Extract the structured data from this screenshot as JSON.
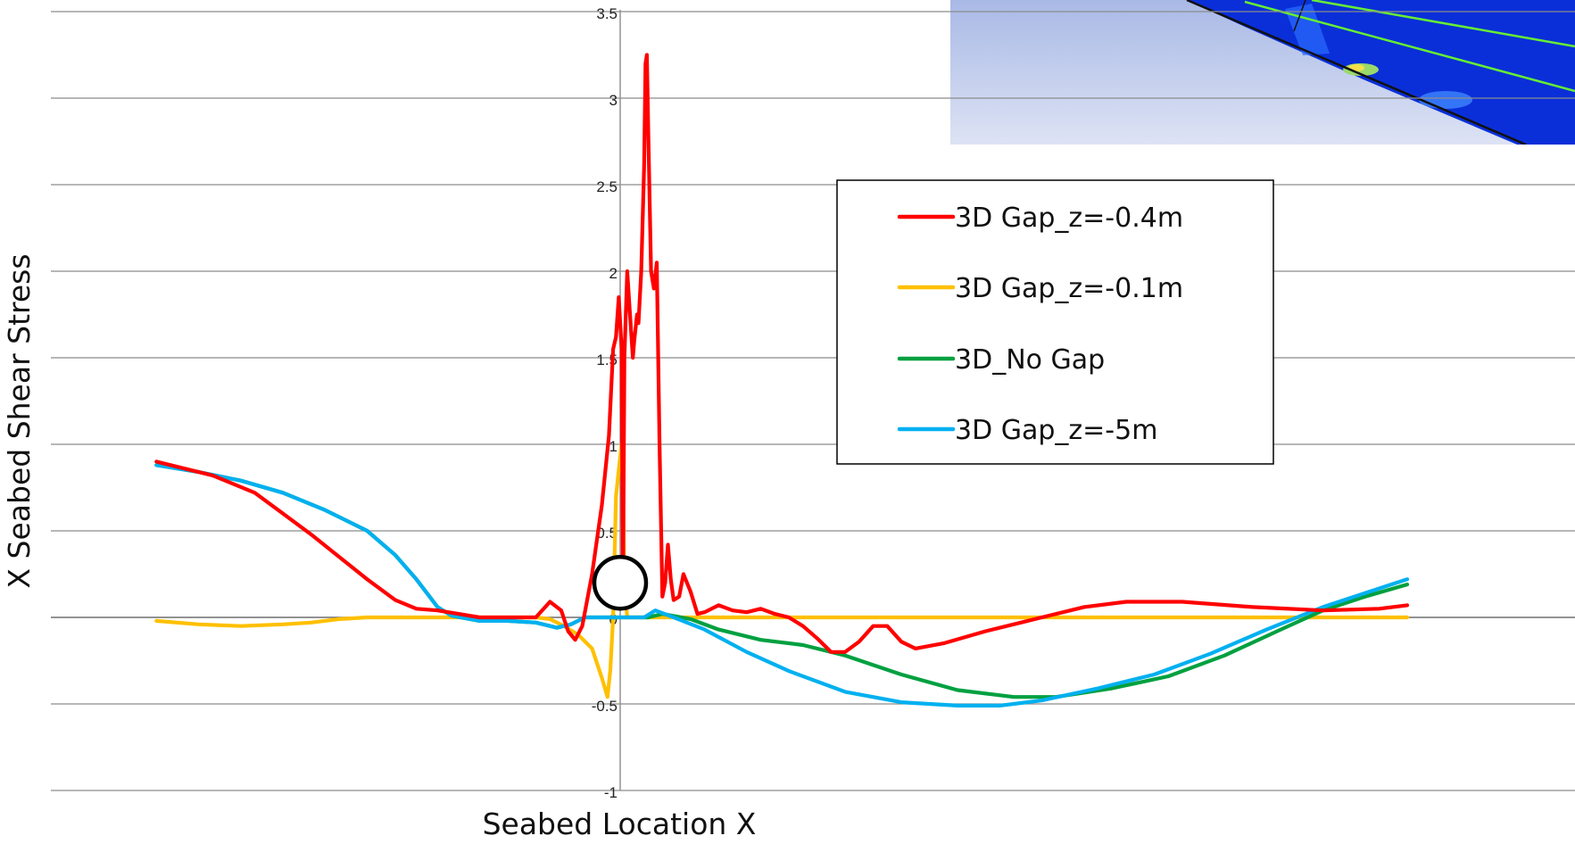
{
  "chart_data": {
    "type": "line",
    "title": "",
    "xlabel": "Seabed Location X",
    "ylabel": "X Seabed Shear Stress",
    "xlim": [
      -3.3,
      5.6
    ],
    "ylim": [
      -1,
      3.5
    ],
    "x_axis_crosses_at_y": 0,
    "y_axis_at_x": 0,
    "yticks": [
      -1,
      -0.5,
      0,
      0.5,
      1,
      1.5,
      2,
      2.5,
      3,
      3.5
    ],
    "ytick_labels": [
      "-1",
      "-0.5",
      "0",
      "0.5",
      "1",
      "1.5",
      "2",
      "2.5",
      "3",
      "3.5"
    ],
    "grid": "horizontal",
    "legend_position": "upper-right",
    "cylinder_marker": {
      "x": 0,
      "y": 0.2
    },
    "inset": "CFD seabed shear stress contour image (top-right)",
    "series": [
      {
        "name": "3D Gap_z=-0.4m",
        "color": "#ff0000",
        "points": [
          [
            -3.3,
            0.9
          ],
          [
            -2.9,
            0.82
          ],
          [
            -2.6,
            0.72
          ],
          [
            -2.4,
            0.6
          ],
          [
            -2.2,
            0.48
          ],
          [
            -2.0,
            0.35
          ],
          [
            -1.8,
            0.22
          ],
          [
            -1.6,
            0.1
          ],
          [
            -1.45,
            0.05
          ],
          [
            -1.3,
            0.04
          ],
          [
            -1.15,
            0.02
          ],
          [
            -1.0,
            0.0
          ],
          [
            -0.85,
            0.0
          ],
          [
            -0.6,
            0.0
          ],
          [
            -0.5,
            0.09
          ],
          [
            -0.42,
            0.04
          ],
          [
            -0.37,
            -0.08
          ],
          [
            -0.32,
            -0.13
          ],
          [
            -0.27,
            -0.05
          ],
          [
            -0.2,
            0.25
          ],
          [
            -0.13,
            0.65
          ],
          [
            -0.08,
            1.05
          ],
          [
            -0.05,
            1.55
          ],
          [
            -0.03,
            1.62
          ],
          [
            -0.01,
            1.85
          ],
          [
            0.01,
            1.55
          ],
          [
            0.02,
            0.1
          ],
          [
            0.03,
            1.5
          ],
          [
            0.05,
            2.0
          ],
          [
            0.07,
            1.75
          ],
          [
            0.09,
            1.5
          ],
          [
            0.1,
            1.6
          ],
          [
            0.12,
            1.75
          ],
          [
            0.13,
            1.7
          ],
          [
            0.15,
            2.0
          ],
          [
            0.17,
            2.6
          ],
          [
            0.18,
            3.2
          ],
          [
            0.19,
            3.25
          ],
          [
            0.2,
            2.8
          ],
          [
            0.22,
            2.0
          ],
          [
            0.24,
            1.9
          ],
          [
            0.26,
            2.05
          ],
          [
            0.28,
            1.0
          ],
          [
            0.3,
            0.12
          ],
          [
            0.32,
            0.2
          ],
          [
            0.34,
            0.42
          ],
          [
            0.36,
            0.22
          ],
          [
            0.38,
            0.1
          ],
          [
            0.42,
            0.12
          ],
          [
            0.45,
            0.25
          ],
          [
            0.5,
            0.15
          ],
          [
            0.55,
            0.02
          ],
          [
            0.6,
            0.03
          ],
          [
            0.7,
            0.07
          ],
          [
            0.8,
            0.04
          ],
          [
            0.9,
            0.03
          ],
          [
            1.0,
            0.05
          ],
          [
            1.1,
            0.02
          ],
          [
            1.2,
            0.0
          ],
          [
            1.3,
            -0.05
          ],
          [
            1.4,
            -0.12
          ],
          [
            1.5,
            -0.2
          ],
          [
            1.6,
            -0.2
          ],
          [
            1.7,
            -0.14
          ],
          [
            1.8,
            -0.05
          ],
          [
            1.9,
            -0.05
          ],
          [
            2.0,
            -0.14
          ],
          [
            2.1,
            -0.18
          ],
          [
            2.3,
            -0.15
          ],
          [
            2.6,
            -0.08
          ],
          [
            3.0,
            0.0
          ],
          [
            3.3,
            0.06
          ],
          [
            3.6,
            0.09
          ],
          [
            4.0,
            0.09
          ],
          [
            4.5,
            0.06
          ],
          [
            5.0,
            0.04
          ],
          [
            5.4,
            0.05
          ],
          [
            5.6,
            0.07
          ]
        ]
      },
      {
        "name": "3D Gap_z=-0.1m",
        "color": "#ffc000",
        "points": [
          [
            -3.3,
            -0.02
          ],
          [
            -3.0,
            -0.04
          ],
          [
            -2.7,
            -0.05
          ],
          [
            -2.4,
            -0.04
          ],
          [
            -2.2,
            -0.03
          ],
          [
            -2.0,
            -0.01
          ],
          [
            -1.8,
            0.0
          ],
          [
            -1.0,
            0.0
          ],
          [
            -0.6,
            0.0
          ],
          [
            -0.5,
            -0.01
          ],
          [
            -0.4,
            -0.05
          ],
          [
            -0.3,
            -0.1
          ],
          [
            -0.2,
            -0.18
          ],
          [
            -0.13,
            -0.35
          ],
          [
            -0.09,
            -0.46
          ],
          [
            -0.07,
            -0.3
          ],
          [
            -0.05,
            0.0
          ],
          [
            -0.04,
            0.35
          ],
          [
            -0.03,
            0.7
          ],
          [
            -0.01,
            0.85
          ],
          [
            0.01,
            1.0
          ],
          [
            0.02,
            0.8
          ],
          [
            0.03,
            0.2
          ],
          [
            0.05,
            0.0
          ],
          [
            1.0,
            0.0
          ],
          [
            3.0,
            0.0
          ],
          [
            5.6,
            0.0
          ]
        ]
      },
      {
        "name": "3D_No Gap",
        "color": "#00a040",
        "points": [
          [
            -3.3,
            0.88
          ],
          [
            -3.0,
            0.84
          ],
          [
            -2.7,
            0.79
          ],
          [
            -2.4,
            0.72
          ],
          [
            -2.1,
            0.62
          ],
          [
            -1.8,
            0.5
          ],
          [
            -1.6,
            0.36
          ],
          [
            -1.45,
            0.22
          ],
          [
            -1.3,
            0.06
          ],
          [
            -1.2,
            0.01
          ],
          [
            -1.0,
            -0.02
          ],
          [
            -0.8,
            -0.02
          ],
          [
            -0.6,
            -0.03
          ],
          [
            -0.45,
            -0.06
          ],
          [
            -0.35,
            -0.04
          ],
          [
            -0.25,
            0.0
          ],
          [
            0.0,
            0.0
          ],
          [
            0.2,
            0.0
          ],
          [
            0.3,
            0.02
          ],
          [
            0.5,
            -0.01
          ],
          [
            0.7,
            -0.07
          ],
          [
            1.0,
            -0.13
          ],
          [
            1.3,
            -0.16
          ],
          [
            1.6,
            -0.22
          ],
          [
            2.0,
            -0.33
          ],
          [
            2.4,
            -0.42
          ],
          [
            2.8,
            -0.46
          ],
          [
            3.1,
            -0.46
          ],
          [
            3.5,
            -0.41
          ],
          [
            3.9,
            -0.34
          ],
          [
            4.3,
            -0.22
          ],
          [
            4.7,
            -0.07
          ],
          [
            5.0,
            0.04
          ],
          [
            5.3,
            0.12
          ],
          [
            5.6,
            0.19
          ]
        ]
      },
      {
        "name": "3D Gap_z=-5m",
        "color": "#00b0f0",
        "points": [
          [
            -3.3,
            0.88
          ],
          [
            -3.0,
            0.84
          ],
          [
            -2.7,
            0.79
          ],
          [
            -2.4,
            0.72
          ],
          [
            -2.1,
            0.62
          ],
          [
            -1.8,
            0.5
          ],
          [
            -1.6,
            0.36
          ],
          [
            -1.45,
            0.22
          ],
          [
            -1.3,
            0.06
          ],
          [
            -1.2,
            0.01
          ],
          [
            -1.0,
            -0.02
          ],
          [
            -0.8,
            -0.02
          ],
          [
            -0.6,
            -0.03
          ],
          [
            -0.45,
            -0.06
          ],
          [
            -0.35,
            -0.04
          ],
          [
            -0.25,
            0.0
          ],
          [
            0.0,
            0.0
          ],
          [
            0.17,
            0.0
          ],
          [
            0.25,
            0.04
          ],
          [
            0.35,
            0.01
          ],
          [
            0.6,
            -0.07
          ],
          [
            0.9,
            -0.2
          ],
          [
            1.2,
            -0.31
          ],
          [
            1.6,
            -0.43
          ],
          [
            2.0,
            -0.49
          ],
          [
            2.4,
            -0.51
          ],
          [
            2.7,
            -0.51
          ],
          [
            3.0,
            -0.48
          ],
          [
            3.4,
            -0.41
          ],
          [
            3.8,
            -0.33
          ],
          [
            4.2,
            -0.21
          ],
          [
            4.6,
            -0.07
          ],
          [
            5.0,
            0.06
          ],
          [
            5.3,
            0.14
          ],
          [
            5.6,
            0.22
          ]
        ]
      }
    ]
  }
}
